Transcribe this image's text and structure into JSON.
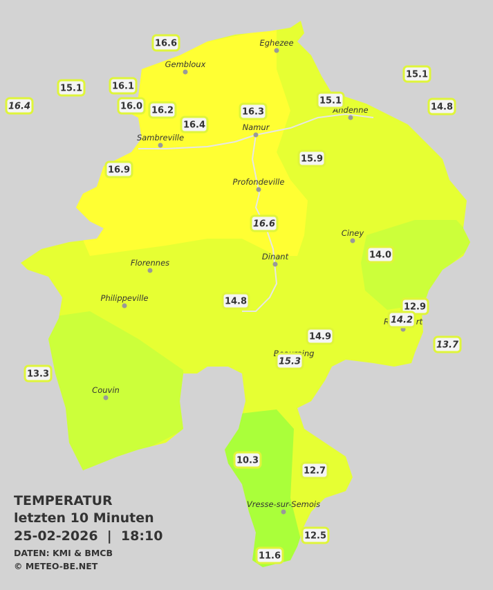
{
  "header": {
    "title": "TEMPERATUR",
    "period": "letzten 10 Minuten",
    "timestamp": "25-02-2026  |  18:10",
    "source": "DATEN: KMI & BMCB",
    "copyright": "© METEO-BE.NET"
  },
  "cities": [
    {
      "name": "Eghezee"
    },
    {
      "name": "Gembloux"
    },
    {
      "name": "Andenne"
    },
    {
      "name": "Namur"
    },
    {
      "name": "Sambreville"
    },
    {
      "name": "Profondeville"
    },
    {
      "name": "Ciney"
    },
    {
      "name": "Dinant"
    },
    {
      "name": "Florennes"
    },
    {
      "name": "Philippeville"
    },
    {
      "name": "Rochefort"
    },
    {
      "name": "Beauraing"
    },
    {
      "name": "Couvin"
    },
    {
      "name": "Vresse-sur-Semois"
    }
  ],
  "stations": [
    {
      "label": "16.6"
    },
    {
      "label": "15.1"
    },
    {
      "label": "16.1"
    },
    {
      "label": "16.4",
      "italic": true
    },
    {
      "label": "16.0"
    },
    {
      "label": "16.2"
    },
    {
      "label": "16.3"
    },
    {
      "label": "16.4"
    },
    {
      "label": "15.1"
    },
    {
      "label": "15.1"
    },
    {
      "label": "14.8"
    },
    {
      "label": "15.9"
    },
    {
      "label": "16.9"
    },
    {
      "label": "16.6",
      "italic": true
    },
    {
      "label": "14.0"
    },
    {
      "label": "14.8"
    },
    {
      "label": "12.9"
    },
    {
      "label": "14.2",
      "italic": true
    },
    {
      "label": "14.9"
    },
    {
      "label": "13.7",
      "italic": true
    },
    {
      "label": "15.3",
      "italic": true
    },
    {
      "label": "13.3"
    },
    {
      "label": "10.3"
    },
    {
      "label": "12.7"
    },
    {
      "label": "12.5"
    },
    {
      "label": "11.6"
    }
  ]
}
